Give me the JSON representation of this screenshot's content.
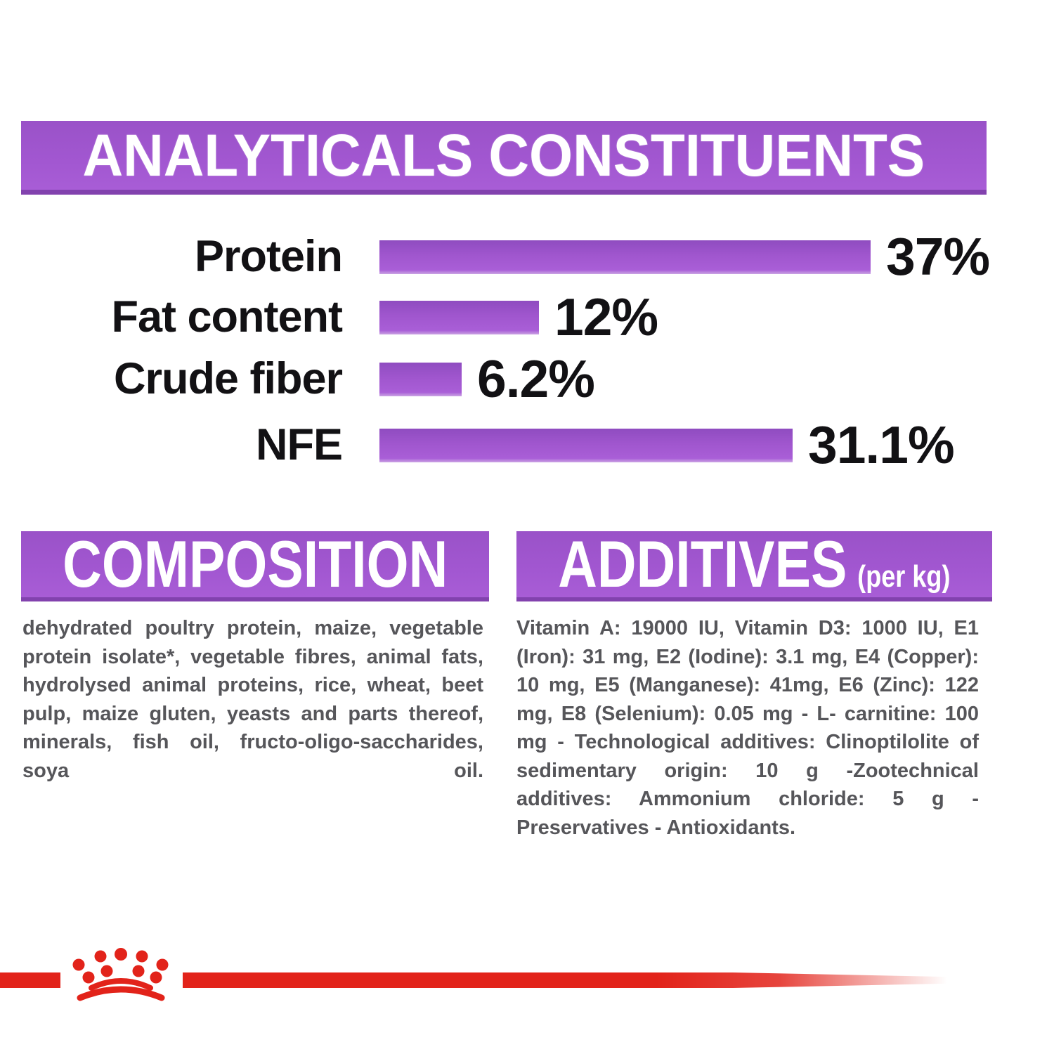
{
  "header": {
    "title": "ANALYTICALS CONSTITUENTS"
  },
  "chart_data": {
    "type": "bar",
    "orientation": "horizontal",
    "title": "ANALYTICALS CONSTITUENTS",
    "categories": [
      "Protein",
      "Fat content",
      "Crude fiber",
      "NFE"
    ],
    "values": [
      37,
      12,
      6.2,
      31.1
    ],
    "value_labels": [
      "37%",
      "12%",
      "6.2%",
      "31.1%"
    ],
    "unit": "%",
    "xlim": [
      0,
      40
    ],
    "grid": false,
    "legend": false,
    "bar_color": "#9c57cc",
    "label_color": "#121114"
  },
  "composition": {
    "heading": "COMPOSITION",
    "body": "dehydrated poultry protein, maize, vegetable protein isolate*, vegetable fibres, animal fats, hydrolysed animal proteins, rice, wheat, beet pulp, maize gluten, yeasts and parts thereof, minerals, fish oil, fructo-oligo-saccharides, soya oil."
  },
  "additives": {
    "heading": "ADDITIVES",
    "heading_suffix": "(per kg)",
    "body": "Vitamin A: 19000 IU, Vitamin D3: 1000 IU, E1 (Iron): 31 mg, E2 (Iodine): 3.1 mg, E4 (Copper): 10 mg, E5 (Manganese): 41mg, E6 (Zinc): 122 mg, E8 (Selenium): 0.05 mg - L- carnitine: 100 mg - Technological additives: Clinoptilolite of sedimentary origin: 10 g -Zootechnical additives: Ammonium chloride: 5 g - Preservatives - Antioxidants."
  },
  "footer": {
    "logo": "royal-canin-crown"
  },
  "colors": {
    "purple": "#9c57cc",
    "purple_dark": "#8242ae",
    "red": "#e2231a",
    "heading_text": "#ffffff",
    "chart_text": "#121114",
    "body_text": "#56565a",
    "background": "#ffffff"
  }
}
